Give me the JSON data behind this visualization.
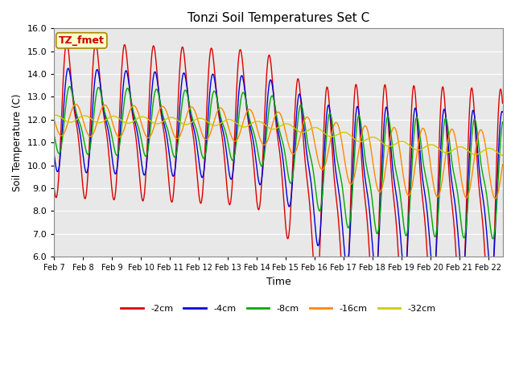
{
  "title": "Tonzi Soil Temperatures Set C",
  "xlabel": "Time",
  "ylabel": "Soil Temperature (C)",
  "ylim": [
    6.0,
    16.0
  ],
  "yticks": [
    6.0,
    7.0,
    8.0,
    9.0,
    10.0,
    11.0,
    12.0,
    13.0,
    14.0,
    15.0,
    16.0
  ],
  "xtick_labels": [
    "Feb 7",
    "Feb 8",
    "Feb 9",
    "Feb 10",
    "Feb 11",
    "Feb 12",
    "Feb 13",
    "Feb 14",
    "Feb 15",
    "Feb 16",
    "Feb 17",
    "Feb 18",
    "Feb 19",
    "Feb 20",
    "Feb 21",
    "Feb 22"
  ],
  "line_colors": {
    "-2cm": "#dd0000",
    "-4cm": "#0000dd",
    "-8cm": "#00aa00",
    "-16cm": "#ff8800",
    "-32cm": "#cccc00"
  },
  "annotation_text": "TZ_fmet",
  "annotation_bg": "#ffffcc",
  "annotation_border": "#aa8800",
  "annotation_text_color": "#cc0000",
  "fig_bg": "#ffffff",
  "plot_bg": "#e8e8e8"
}
